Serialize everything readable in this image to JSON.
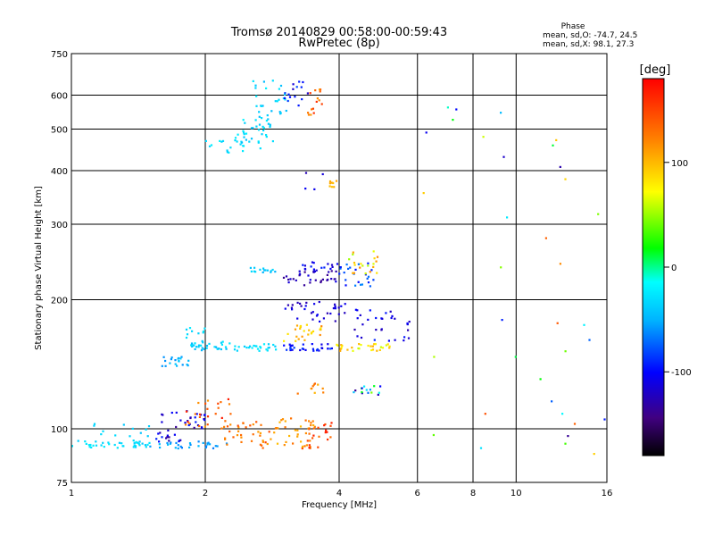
{
  "chart_data": {
    "type": "scatter",
    "title": "Tromsø 20140829 00:58:00-00:59:43",
    "subtitle": "RwPretec (8p)",
    "xlabel": "Frequency [MHz]",
    "ylabel": "Stationary phase Virtual Height [km]",
    "x_scale": "log",
    "y_scale": "log",
    "xlim": [
      1,
      16
    ],
    "ylim": [
      75,
      750
    ],
    "x_ticks": [
      1,
      2,
      4,
      6,
      8,
      10,
      16
    ],
    "x_tick_labels": [
      "1",
      "2",
      "4",
      "6",
      "8",
      "10",
      "16"
    ],
    "y_ticks": [
      75,
      100,
      200,
      300,
      400,
      500,
      600,
      750
    ],
    "y_tick_labels": [
      "75",
      "100",
      "200",
      "300",
      "400",
      "500",
      "600",
      "750"
    ],
    "grid": true,
    "legend": {
      "title": "Phase",
      "line1": "mean, sd,O: -74.7, 24.5",
      "line2": "mean, sd,X:  98.1, 27.3",
      "placement": "top-right"
    },
    "colorbar": {
      "label": "[deg]",
      "ticks": [
        100,
        0,
        -100
      ],
      "tick_labels": [
        "100",
        "0",
        "-100"
      ],
      "range": [
        -180,
        180
      ]
    },
    "clusters": [
      {
        "f": [
          1.0,
          1.5
        ],
        "h": [
          90,
          94
        ],
        "phase": [
          -40,
          -20
        ],
        "n": 40
      },
      {
        "f": [
          1.5,
          2.3
        ],
        "h": [
          90,
          94
        ],
        "phase": [
          -70,
          -45
        ],
        "n": 30
      },
      {
        "f": [
          1.0,
          1.5
        ],
        "h": [
          96,
          103
        ],
        "phase": [
          -45,
          -30
        ],
        "n": 12
      },
      {
        "f": [
          1.55,
          2.0
        ],
        "h": [
          93,
          112
        ],
        "phase": [
          -140,
          -90
        ],
        "n": 40
      },
      {
        "f": [
          1.8,
          2.3
        ],
        "h": [
          100,
          118
        ],
        "phase": [
          110,
          170
        ],
        "n": 25
      },
      {
        "f": [
          2.2,
          2.8
        ],
        "h": [
          90,
          105
        ],
        "phase": [
          110,
          150
        ],
        "n": 35
      },
      {
        "f": [
          2.8,
          3.5
        ],
        "h": [
          90,
          106
        ],
        "phase": [
          90,
          130
        ],
        "n": 35
      },
      {
        "f": [
          3.3,
          3.9
        ],
        "h": [
          90,
          106
        ],
        "phase": [
          120,
          170
        ],
        "n": 25
      },
      {
        "f": [
          1.6,
          1.85
        ],
        "h": [
          140,
          148
        ],
        "phase": [
          -60,
          -35
        ],
        "n": 20
      },
      {
        "f": [
          1.85,
          2.3
        ],
        "h": [
          152,
          160
        ],
        "phase": [
          -50,
          -25
        ],
        "n": 30
      },
      {
        "f": [
          1.8,
          2.0
        ],
        "h": [
          160,
          172
        ],
        "phase": [
          -40,
          -20
        ],
        "n": 10
      },
      {
        "f": [
          2.3,
          2.9
        ],
        "h": [
          152,
          158
        ],
        "phase": [
          -40,
          -20
        ],
        "n": 25
      },
      {
        "f": [
          2.5,
          2.9
        ],
        "h": [
          230,
          238
        ],
        "phase": [
          -50,
          -30
        ],
        "n": 15
      },
      {
        "f": [
          3.0,
          4.0
        ],
        "h": [
          215,
          235
        ],
        "phase": [
          -140,
          -110
        ],
        "n": 35
      },
      {
        "f": [
          3.3,
          4.0
        ],
        "h": [
          235,
          245
        ],
        "phase": [
          -120,
          -90
        ],
        "n": 15
      },
      {
        "f": [
          4.0,
          4.8
        ],
        "h": [
          215,
          245
        ],
        "phase": [
          -100,
          -60
        ],
        "n": 25
      },
      {
        "f": [
          4.2,
          4.9
        ],
        "h": [
          230,
          260
        ],
        "phase": [
          50,
          120
        ],
        "n": 20
      },
      {
        "f": [
          3.0,
          4.4
        ],
        "h": [
          178,
          198
        ],
        "phase": [
          -130,
          -100
        ],
        "n": 35
      },
      {
        "f": [
          3.0,
          3.8
        ],
        "h": [
          160,
          175
        ],
        "phase": [
          70,
          120
        ],
        "n": 25
      },
      {
        "f": [
          3.0,
          3.9
        ],
        "h": [
          152,
          158
        ],
        "phase": [
          -110,
          -80
        ],
        "n": 30
      },
      {
        "f": [
          3.9,
          5.2
        ],
        "h": [
          152,
          158
        ],
        "phase": [
          60,
          110
        ],
        "n": 30
      },
      {
        "f": [
          4.3,
          5.8
        ],
        "h": [
          160,
          190
        ],
        "phase": [
          -130,
          -90
        ],
        "n": 30
      },
      {
        "f": [
          4.3,
          5.0
        ],
        "h": [
          120,
          126
        ],
        "phase": [
          -140,
          60
        ],
        "n": 15
      },
      {
        "f": [
          3.2,
          3.8
        ],
        "h": [
          120,
          128
        ],
        "phase": [
          90,
          140
        ],
        "n": 10
      },
      {
        "f": [
          2.0,
          2.5
        ],
        "h": [
          440,
          500
        ],
        "phase": [
          -40,
          -20
        ],
        "n": 20
      },
      {
        "f": [
          2.4,
          2.85
        ],
        "h": [
          450,
          540
        ],
        "phase": [
          -45,
          -20
        ],
        "n": 35
      },
      {
        "f": [
          2.55,
          3.1
        ],
        "h": [
          540,
          650
        ],
        "phase": [
          -50,
          -20
        ],
        "n": 25
      },
      {
        "f": [
          3.0,
          3.4
        ],
        "h": [
          560,
          650
        ],
        "phase": [
          -120,
          -80
        ],
        "n": 15
      },
      {
        "f": [
          3.4,
          3.7
        ],
        "h": [
          540,
          620
        ],
        "phase": [
          110,
          160
        ],
        "n": 15
      },
      {
        "f": [
          3.8,
          3.95
        ],
        "h": [
          365,
          380
        ],
        "phase": [
          90,
          110
        ],
        "n": 8
      },
      {
        "f": [
          3.2,
          3.7
        ],
        "h": [
          360,
          400
        ],
        "phase": [
          -130,
          -100
        ],
        "n": 4
      },
      {
        "f": [
          6.0,
          16.0
        ],
        "h": [
          85,
          600
        ],
        "phase": [
          -140,
          150
        ],
        "n": 35
      }
    ]
  }
}
